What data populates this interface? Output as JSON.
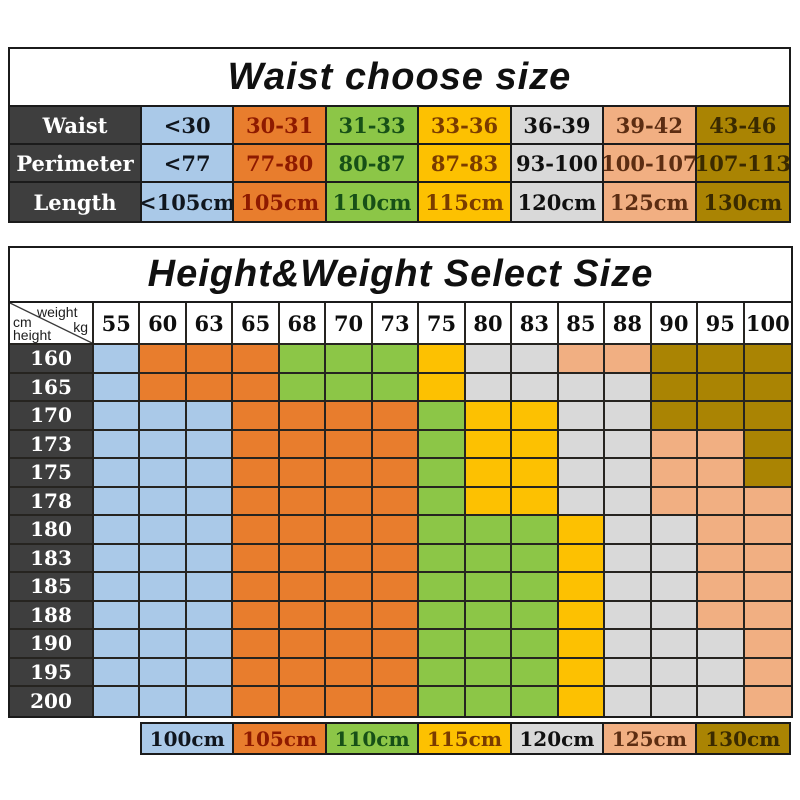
{
  "colors": {
    "blue": {
      "bg": "#aac9e8",
      "fg": "#10161e"
    },
    "orange": {
      "bg": "#e87d2d",
      "fg": "#8e1a00"
    },
    "green": {
      "bg": "#8cc647",
      "fg": "#175017"
    },
    "yellow": {
      "bg": "#fdc101",
      "fg": "#7a3c00"
    },
    "gray": {
      "bg": "#d9d9d9",
      "fg": "#101010"
    },
    "salmon": {
      "bg": "#f1af82",
      "fg": "#5c2d12"
    },
    "gold": {
      "bg": "#aa8403",
      "fg": "#3a2a00"
    },
    "header_bg": "#3e3e3e",
    "header_fg": "#ffffff",
    "border": "#1b1b1b"
  },
  "code_map": {
    "B": "blue",
    "O": "orange",
    "G": "green",
    "Y": "yellow",
    "E": "gray",
    "S": "salmon",
    "D": "gold"
  },
  "chart_data": [
    {
      "type": "table",
      "title": "Waist choose size",
      "rows": [
        {
          "label": "Waist",
          "cells": [
            {
              "t": "<30",
              "c": "B"
            },
            {
              "t": "30-31",
              "c": "O"
            },
            {
              "t": "31-33",
              "c": "G"
            },
            {
              "t": "33-36",
              "c": "Y"
            },
            {
              "t": "36-39",
              "c": "E"
            },
            {
              "t": "39-42",
              "c": "S"
            },
            {
              "t": "43-46",
              "c": "D"
            }
          ]
        },
        {
          "label": "Perimeter",
          "cells": [
            {
              "t": "<77",
              "c": "B"
            },
            {
              "t": "77-80",
              "c": "O"
            },
            {
              "t": "80-87",
              "c": "G"
            },
            {
              "t": "87-83",
              "c": "Y"
            },
            {
              "t": "93-100",
              "c": "E"
            },
            {
              "t": "100-107",
              "c": "S"
            },
            {
              "t": "107-113",
              "c": "D"
            }
          ]
        },
        {
          "label": "Length",
          "cells": [
            {
              "t": "<105cm",
              "c": "B"
            },
            {
              "t": "105cm",
              "c": "O"
            },
            {
              "t": "110cm",
              "c": "G"
            },
            {
              "t": "115cm",
              "c": "Y"
            },
            {
              "t": "120cm",
              "c": "E"
            },
            {
              "t": "125cm",
              "c": "S"
            },
            {
              "t": "130cm",
              "c": "D"
            }
          ]
        }
      ]
    },
    {
      "type": "heatmap",
      "title": "Height&Weight Select Size",
      "corner": {
        "weight_label": "weight",
        "weight_unit": "kg",
        "height_unit": "cm",
        "height_label": "height"
      },
      "weights": [
        "55",
        "60",
        "63",
        "65",
        "68",
        "70",
        "73",
        "75",
        "80",
        "83",
        "85",
        "88",
        "90",
        "95",
        "100"
      ],
      "matrix": [
        {
          "height": "160",
          "cells": [
            "B",
            "O",
            "O",
            "O",
            "G",
            "G",
            "G",
            "Y",
            "E",
            "E",
            "S",
            "S",
            "D",
            "D",
            "D"
          ]
        },
        {
          "height": "165",
          "cells": [
            "B",
            "O",
            "O",
            "O",
            "G",
            "G",
            "G",
            "Y",
            "E",
            "E",
            "E",
            "E",
            "D",
            "D",
            "D"
          ]
        },
        {
          "height": "170",
          "cells": [
            "B",
            "B",
            "B",
            "O",
            "O",
            "O",
            "O",
            "G",
            "Y",
            "Y",
            "E",
            "E",
            "D",
            "D",
            "D"
          ]
        },
        {
          "height": "173",
          "cells": [
            "B",
            "B",
            "B",
            "O",
            "O",
            "O",
            "O",
            "G",
            "Y",
            "Y",
            "E",
            "E",
            "S",
            "S",
            "D"
          ]
        },
        {
          "height": "175",
          "cells": [
            "B",
            "B",
            "B",
            "O",
            "O",
            "O",
            "O",
            "G",
            "Y",
            "Y",
            "E",
            "E",
            "S",
            "S",
            "D"
          ]
        },
        {
          "height": "178",
          "cells": [
            "B",
            "B",
            "B",
            "O",
            "O",
            "O",
            "O",
            "G",
            "Y",
            "Y",
            "E",
            "E",
            "S",
            "S",
            "S"
          ]
        },
        {
          "height": "180",
          "cells": [
            "B",
            "B",
            "B",
            "O",
            "O",
            "O",
            "O",
            "G",
            "G",
            "G",
            "Y",
            "E",
            "E",
            "S",
            "S"
          ]
        },
        {
          "height": "183",
          "cells": [
            "B",
            "B",
            "B",
            "O",
            "O",
            "O",
            "O",
            "G",
            "G",
            "G",
            "Y",
            "E",
            "E",
            "S",
            "S"
          ]
        },
        {
          "height": "185",
          "cells": [
            "B",
            "B",
            "B",
            "O",
            "O",
            "O",
            "O",
            "G",
            "G",
            "G",
            "Y",
            "E",
            "E",
            "S",
            "S"
          ]
        },
        {
          "height": "188",
          "cells": [
            "B",
            "B",
            "B",
            "O",
            "O",
            "O",
            "O",
            "G",
            "G",
            "G",
            "Y",
            "E",
            "E",
            "S",
            "S"
          ]
        },
        {
          "height": "190",
          "cells": [
            "B",
            "B",
            "B",
            "O",
            "O",
            "O",
            "O",
            "G",
            "G",
            "G",
            "Y",
            "E",
            "E",
            "E",
            "S"
          ]
        },
        {
          "height": "195",
          "cells": [
            "B",
            "B",
            "B",
            "O",
            "O",
            "O",
            "O",
            "G",
            "G",
            "G",
            "Y",
            "E",
            "E",
            "E",
            "S"
          ]
        },
        {
          "height": "200",
          "cells": [
            "B",
            "B",
            "B",
            "O",
            "O",
            "O",
            "O",
            "G",
            "G",
            "G",
            "Y",
            "E",
            "E",
            "E",
            "S"
          ]
        }
      ],
      "legend": [
        {
          "t": "100cm",
          "c": "B"
        },
        {
          "t": "105cm",
          "c": "O"
        },
        {
          "t": "110cm",
          "c": "G"
        },
        {
          "t": "115cm",
          "c": "Y"
        },
        {
          "t": "120cm",
          "c": "E"
        },
        {
          "t": "125cm",
          "c": "S"
        },
        {
          "t": "130cm",
          "c": "D"
        }
      ]
    }
  ]
}
